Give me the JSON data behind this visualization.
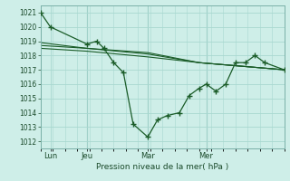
{
  "bg_color": "#ceeee8",
  "grid_color": "#a8d8d0",
  "line_color": "#1a5c28",
  "title": "Pression niveau de la mer( hPa )",
  "ylim": [
    1011.5,
    1021.5
  ],
  "yticks": [
    1012,
    1013,
    1014,
    1015,
    1016,
    1017,
    1018,
    1019,
    1020,
    1021
  ],
  "vline_color": "#7ab0a8",
  "series_main": {
    "x": [
      0.0,
      0.04,
      0.19,
      0.23,
      0.26,
      0.3,
      0.34,
      0.38,
      0.44,
      0.48,
      0.52,
      0.57,
      0.61,
      0.65,
      0.68,
      0.72,
      0.76,
      0.8,
      0.84,
      0.88,
      0.92,
      1.0
    ],
    "y": [
      1021.0,
      1020.0,
      1018.8,
      1019.0,
      1018.5,
      1017.5,
      1016.8,
      1013.2,
      1012.3,
      1013.5,
      1013.8,
      1014.0,
      1015.2,
      1015.7,
      1016.0,
      1015.5,
      1016.0,
      1017.5,
      1017.5,
      1018.0,
      1017.5,
      1017.0
    ]
  },
  "series_smooth1": {
    "x": [
      0.0,
      0.19,
      0.44,
      0.65,
      1.0
    ],
    "y": [
      1018.7,
      1018.5,
      1018.2,
      1017.5,
      1017.0
    ]
  },
  "series_smooth2": {
    "x": [
      0.0,
      0.19,
      0.44,
      0.65,
      1.0
    ],
    "y": [
      1018.5,
      1018.3,
      1017.9,
      1017.5,
      1017.0
    ]
  },
  "series_smooth3": {
    "x": [
      0.0,
      0.19,
      0.44,
      0.65,
      1.0
    ],
    "y": [
      1018.9,
      1018.5,
      1018.1,
      1017.5,
      1017.0
    ]
  },
  "vlines": [
    0.19,
    0.44,
    0.68
  ],
  "xtick_positions": [
    0.04,
    0.19,
    0.44,
    0.68
  ],
  "xtick_labels": [
    "Lun",
    "Jeu",
    "Mar",
    "Mer"
  ]
}
